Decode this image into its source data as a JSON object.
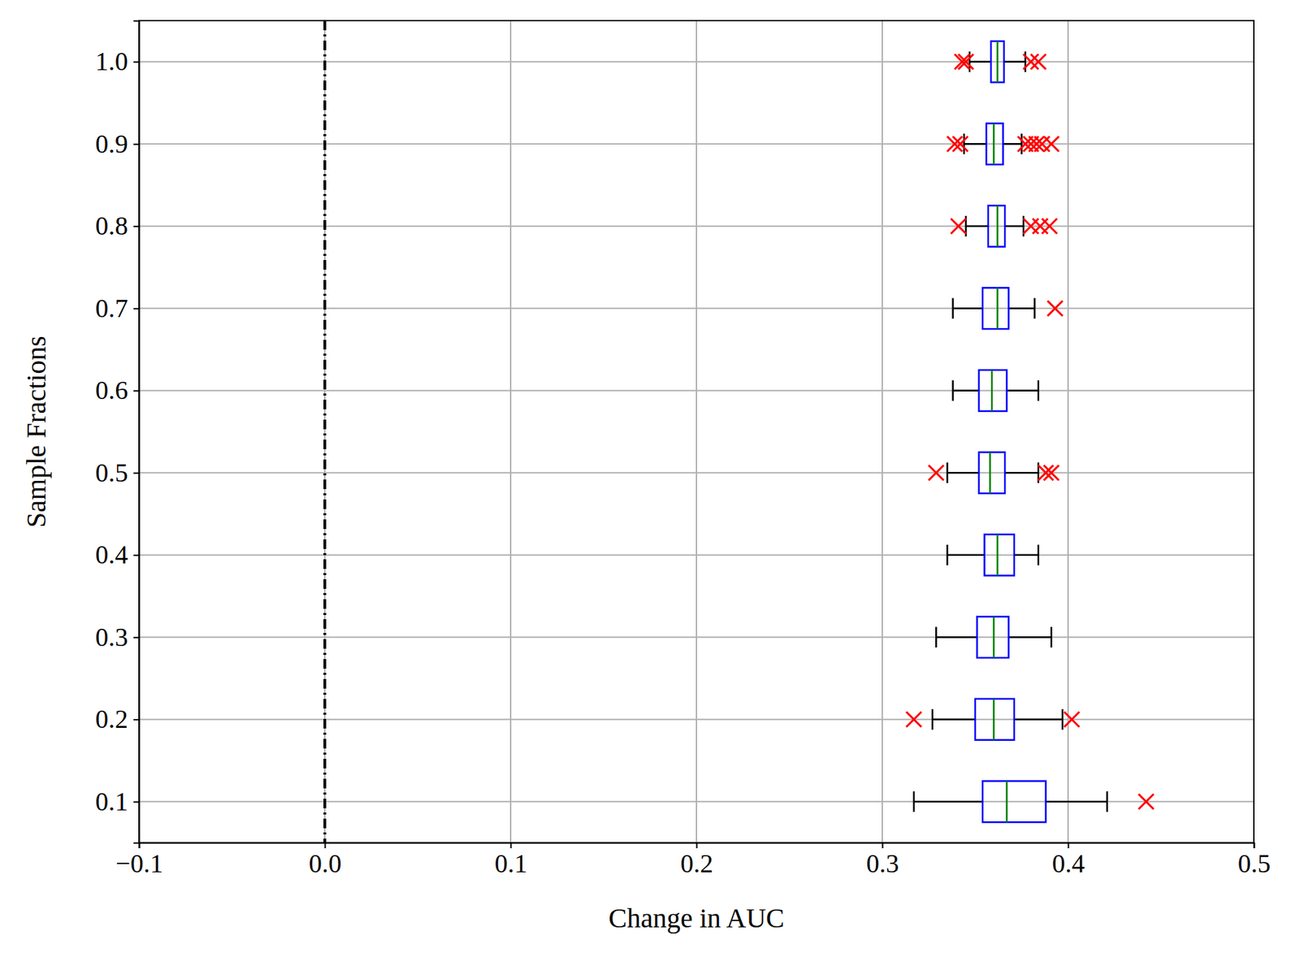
{
  "chart_data": {
    "type": "boxplot",
    "orientation": "horizontal",
    "x_label": "Change in AUC",
    "y_label": "Sample Fractions",
    "categories": [
      "0.1",
      "0.2",
      "0.3",
      "0.4",
      "0.5",
      "0.6",
      "0.7",
      "0.8",
      "0.9",
      "1.0"
    ],
    "whisker_low": [
      0.317,
      0.327,
      0.329,
      0.335,
      0.335,
      0.338,
      0.338,
      0.345,
      0.344,
      0.347
    ],
    "q1": [
      0.354,
      0.35,
      0.351,
      0.355,
      0.352,
      0.352,
      0.354,
      0.357,
      0.356,
      0.3585
    ],
    "median": [
      0.367,
      0.36,
      0.36,
      0.362,
      0.358,
      0.359,
      0.362,
      0.362,
      0.36,
      0.362
    ],
    "q3": [
      0.388,
      0.371,
      0.368,
      0.371,
      0.366,
      0.367,
      0.368,
      0.366,
      0.365,
      0.3655
    ],
    "whisker_high": [
      0.421,
      0.397,
      0.391,
      0.384,
      0.384,
      0.384,
      0.382,
      0.376,
      0.375,
      0.377
    ],
    "outliers": [
      [
        0.442
      ],
      [
        0.317,
        0.402
      ],
      [],
      [],
      [
        0.329,
        0.388,
        0.391
      ],
      [],
      [
        0.393
      ],
      [
        0.341,
        0.38,
        0.385,
        0.39
      ],
      [
        0.339,
        0.342,
        0.377,
        0.38,
        0.383,
        0.386,
        0.391
      ],
      [
        0.343,
        0.345,
        0.38,
        0.384
      ]
    ],
    "reference_line": 0,
    "xlim": [
      -0.1,
      0.5
    ],
    "xticks": [
      {
        "value": -0.1,
        "label": "−0.1"
      },
      {
        "value": 0,
        "label": "0.0"
      },
      0.1,
      0.2,
      0.3,
      0.4,
      0.5
    ],
    "grid": true,
    "color": "#0000ff",
    "marker": "x",
    "line_style": "dashdot"
  }
}
